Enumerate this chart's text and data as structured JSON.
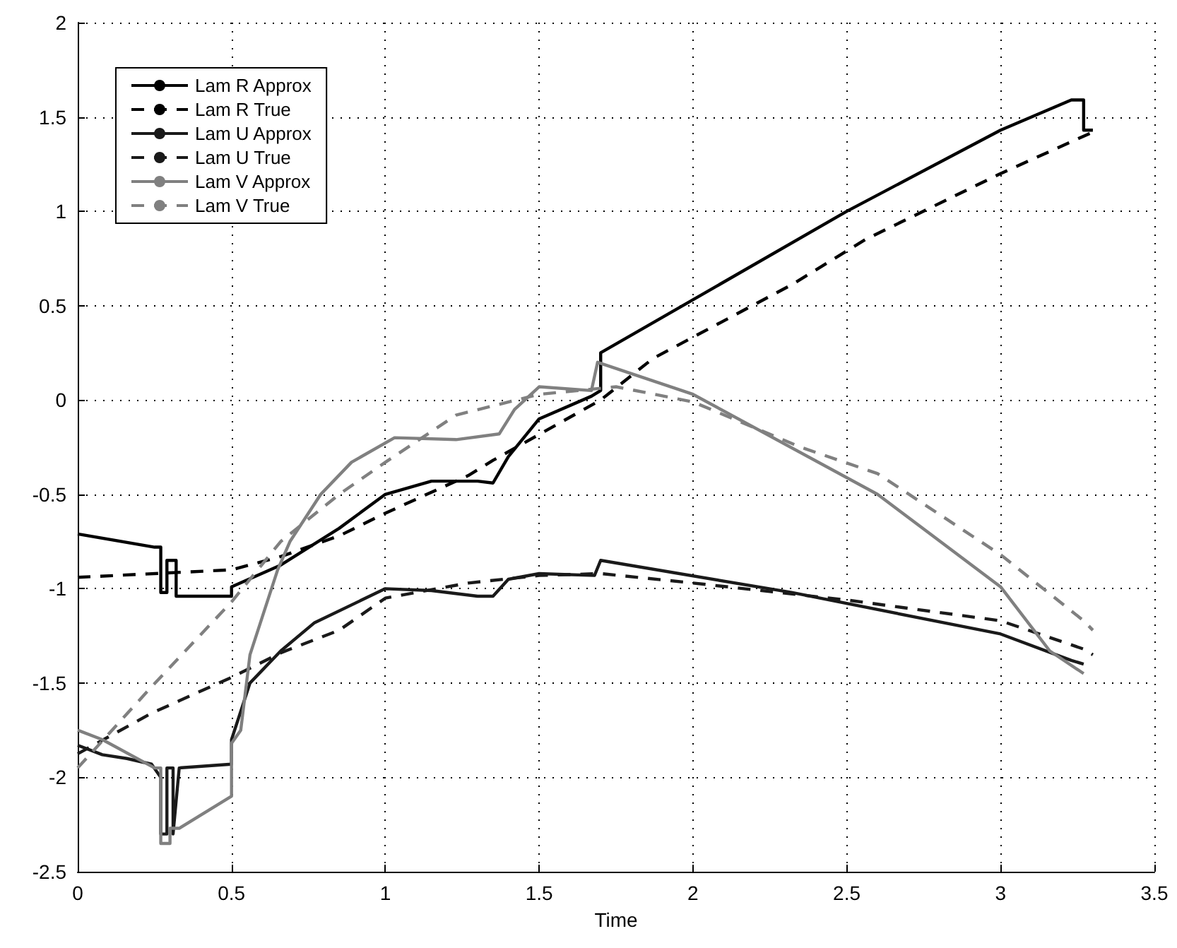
{
  "chart_data": {
    "type": "line",
    "xlabel": "Time",
    "xlim": [
      0,
      3.5
    ],
    "xticks": [
      0,
      0.5,
      1,
      1.5,
      2,
      2.5,
      3,
      3.5
    ],
    "ylim": [
      -2.5,
      2
    ],
    "yticks": [
      -2.5,
      -2,
      -1.5,
      -1,
      -0.5,
      0,
      0.5,
      1,
      1.5,
      2
    ],
    "grid": true,
    "legend": "top left",
    "marker": "none",
    "series": [
      {
        "name": "Lam R Approx",
        "color": "#000000",
        "line_style": "solid",
        "x": [
          0,
          0.25,
          0.27,
          0.27,
          0.29,
          0.29,
          0.32,
          0.32,
          0.33,
          0.5,
          0.5,
          0.66,
          0.85,
          1.0,
          1.15,
          1.3,
          1.35,
          1.4,
          1.5,
          1.67,
          1.7,
          1.7,
          2.5,
          3.0,
          3.23,
          3.27,
          3.27,
          3.3
        ],
        "values": [
          -0.71,
          -0.78,
          -0.78,
          -1.02,
          -1.02,
          -0.85,
          -0.85,
          -1.04,
          -1.04,
          -1.04,
          -0.99,
          -0.875,
          -0.68,
          -0.5,
          -0.43,
          -0.43,
          -0.44,
          -0.3,
          -0.1,
          0.02,
          0.05,
          0.25,
          1.0,
          1.43,
          1.59,
          1.59,
          1.43,
          1.43
        ]
      },
      {
        "name": "Lam R True",
        "color": "#000000",
        "line_style": "dashed",
        "x": [
          0,
          0.5,
          0.66,
          0.85,
          1.0,
          1.27,
          1.35,
          1.7,
          1.87,
          2.32,
          2.56,
          3.0,
          3.3
        ],
        "values": [
          -0.94,
          -0.9,
          -0.83,
          -0.72,
          -0.6,
          -0.4,
          -0.32,
          0.0,
          0.22,
          0.61,
          0.85,
          1.2,
          1.42
        ]
      },
      {
        "name": "Lam U Approx",
        "color": "#1a1a1a",
        "line_style": "solid",
        "x": [
          0,
          0.08,
          0.16,
          0.24,
          0.27,
          0.27,
          0.29,
          0.29,
          0.31,
          0.31,
          0.33,
          0.5,
          0.5,
          0.53,
          0.56,
          0.66,
          0.77,
          1.0,
          1.15,
          1.3,
          1.35,
          1.4,
          1.5,
          1.68,
          1.7,
          2.32,
          3.0,
          3.23,
          3.27
        ],
        "values": [
          -1.83,
          -1.88,
          -1.9,
          -1.93,
          -2.0,
          -2.3,
          -2.3,
          -1.95,
          -1.95,
          -2.3,
          -1.95,
          -1.93,
          -1.8,
          -1.65,
          -1.5,
          -1.33,
          -1.18,
          -1.0,
          -1.01,
          -1.04,
          -1.04,
          -0.95,
          -0.92,
          -0.93,
          -0.85,
          -1.02,
          -1.24,
          -1.38,
          -1.4
        ]
      },
      {
        "name": "Lam U True",
        "color": "#1a1a1a",
        "line_style": "dashed",
        "x": [
          0,
          0.24,
          0.5,
          0.66,
          0.85,
          1.0,
          1.27,
          1.5,
          1.7,
          2.0,
          2.5,
          3.0,
          3.27,
          3.3
        ],
        "values": [
          -1.875,
          -1.66,
          -1.47,
          -1.34,
          -1.22,
          -1.05,
          -0.97,
          -0.93,
          -0.92,
          -0.97,
          -1.06,
          -1.17,
          -1.32,
          -1.35
        ]
      },
      {
        "name": "Lam V Approx",
        "color": "#808080",
        "line_style": "solid",
        "x": [
          0,
          0.08,
          0.25,
          0.27,
          0.27,
          0.3,
          0.3,
          0.33,
          0.5,
          0.5,
          0.53,
          0.56,
          0.6,
          0.65,
          0.69,
          0.79,
          0.89,
          1.03,
          1.23,
          1.37,
          1.42,
          1.5,
          1.67,
          1.69,
          2.0,
          2.6,
          3.0,
          3.16,
          3.27
        ],
        "values": [
          -1.75,
          -1.8,
          -1.95,
          -1.95,
          -2.35,
          -2.35,
          -2.27,
          -2.27,
          -2.1,
          -1.82,
          -1.75,
          -1.35,
          -1.15,
          -0.9,
          -0.75,
          -0.5,
          -0.33,
          -0.2,
          -0.21,
          -0.18,
          -0.05,
          0.07,
          0.05,
          0.2,
          0.03,
          -0.5,
          -0.99,
          -1.33,
          -1.45
        ]
      },
      {
        "name": "Lam V True",
        "color": "#808080",
        "line_style": "dashed",
        "x": [
          0,
          0.24,
          0.5,
          0.66,
          0.85,
          1.0,
          1.23,
          1.5,
          1.75,
          2.0,
          2.35,
          2.6,
          3.0,
          3.27,
          3.3
        ],
        "values": [
          -1.95,
          -1.52,
          -1.07,
          -0.75,
          -0.5,
          -0.33,
          -0.08,
          0.03,
          0.07,
          -0.01,
          -0.25,
          -0.39,
          -0.82,
          -1.17,
          -1.22
        ]
      }
    ]
  }
}
